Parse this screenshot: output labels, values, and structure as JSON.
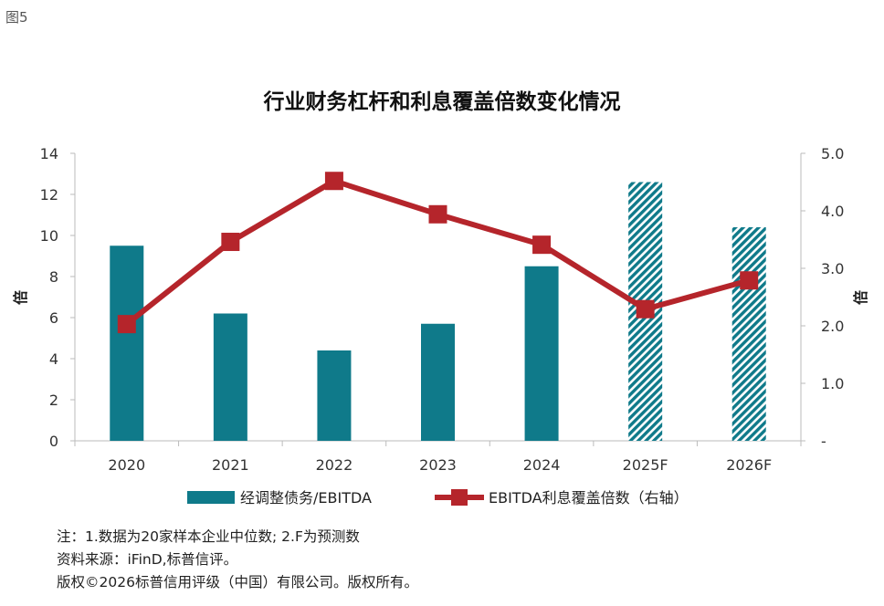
{
  "figure_label": "图5",
  "chart_data": {
    "type": "bar+line",
    "title": "行业财务杠杆和利息覆盖倍数变化情况",
    "categories": [
      "2020",
      "2021",
      "2022",
      "2023",
      "2024",
      "2025F",
      "2026F"
    ],
    "ylabel_left": "倍",
    "ylabel_right": "倍",
    "ylim_left": [
      0,
      14
    ],
    "yticks_left": [
      "0",
      "2",
      "4",
      "6",
      "8",
      "10",
      "12",
      "14"
    ],
    "ylim_right": [
      0,
      5
    ],
    "yticks_right": [
      "-",
      "1.0",
      "2.0",
      "3.0",
      "4.0",
      "5.0"
    ],
    "grid": false,
    "legend_placement": "bottom",
    "series": [
      {
        "name": "经调整债务/EBITDA",
        "type": "bar",
        "axis": "left",
        "color": "#0f7a8a",
        "values": [
          9.5,
          6.2,
          4.4,
          5.7,
          8.5,
          12.6,
          10.4
        ],
        "hatched_forecast": [
          false,
          false,
          false,
          false,
          false,
          true,
          true
        ]
      },
      {
        "name": "EBITDA利息覆盖倍数（右轴）",
        "type": "line",
        "axis": "right",
        "color": "#b5252b",
        "values": [
          2.03,
          3.46,
          4.52,
          3.94,
          3.41,
          2.29,
          2.79
        ]
      }
    ]
  },
  "notes": [
    "注：1.数据为20家样本企业中位数; 2.F为预测数",
    "资料来源：iFinD,标普信评。",
    "版权©2026标普信用评级（中国）有限公司。版权所有。"
  ]
}
